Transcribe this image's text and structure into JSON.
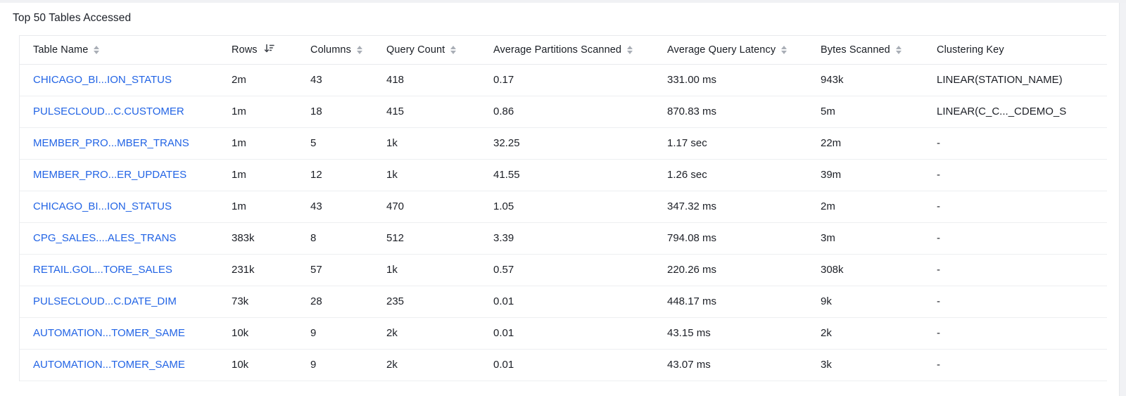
{
  "page": {
    "title": "Top 50 Tables Accessed"
  },
  "colors": {
    "link_blue": "#2264e5",
    "text_dark": "#1c1f26",
    "row_border": "#edeff1",
    "table_border": "#e8eaed",
    "sort_icon_inactive": "#a9aeb6",
    "sort_icon_active": "#3f434a",
    "top_strip": "#f0f1f4",
    "scroll_gutter": "#f1f2f5"
  },
  "icons": {
    "sortable": "sort-toggle-icon",
    "sorted_descending": "sort-descending-icon"
  },
  "table": {
    "columns": [
      {
        "key": "table_name",
        "label": "Table Name",
        "sort": "both"
      },
      {
        "key": "rows",
        "label": "Rows",
        "sort": "desc"
      },
      {
        "key": "columns",
        "label": "Columns",
        "sort": "both"
      },
      {
        "key": "query_count",
        "label": "Query Count",
        "sort": "both"
      },
      {
        "key": "avg_partitions_scanned",
        "label": "Average Partitions Scanned",
        "sort": "both"
      },
      {
        "key": "avg_query_latency",
        "label": "Average Query Latency",
        "sort": "both"
      },
      {
        "key": "bytes_scanned",
        "label": "Bytes Scanned",
        "sort": "both"
      },
      {
        "key": "clustering_key",
        "label": "Clustering Key",
        "sort": "none"
      }
    ],
    "rows": [
      {
        "table_name": "CHICAGO_BI...ION_STATUS",
        "rows": "2m",
        "columns": "43",
        "query_count": "418",
        "avg_partitions_scanned": "0.17",
        "avg_query_latency": "331.00 ms",
        "bytes_scanned": "943k",
        "clustering_key": "LINEAR(STATION_NAME)"
      },
      {
        "table_name": "PULSECLOUD...C.CUSTOMER",
        "rows": "1m",
        "columns": "18",
        "query_count": "415",
        "avg_partitions_scanned": "0.86",
        "avg_query_latency": "870.83 ms",
        "bytes_scanned": "5m",
        "clustering_key": "LINEAR(C_C..._CDEMO_S"
      },
      {
        "table_name": "MEMBER_PRO...MBER_TRANS",
        "rows": "1m",
        "columns": "5",
        "query_count": "1k",
        "avg_partitions_scanned": "32.25",
        "avg_query_latency": "1.17 sec",
        "bytes_scanned": "22m",
        "clustering_key": "-"
      },
      {
        "table_name": "MEMBER_PRO...ER_UPDATES",
        "rows": "1m",
        "columns": "12",
        "query_count": "1k",
        "avg_partitions_scanned": "41.55",
        "avg_query_latency": "1.26 sec",
        "bytes_scanned": "39m",
        "clustering_key": "-"
      },
      {
        "table_name": "CHICAGO_BI...ION_STATUS",
        "rows": "1m",
        "columns": "43",
        "query_count": "470",
        "avg_partitions_scanned": "1.05",
        "avg_query_latency": "347.32 ms",
        "bytes_scanned": "2m",
        "clustering_key": "-"
      },
      {
        "table_name": "CPG_SALES....ALES_TRANS",
        "rows": "383k",
        "columns": "8",
        "query_count": "512",
        "avg_partitions_scanned": "3.39",
        "avg_query_latency": "794.08 ms",
        "bytes_scanned": "3m",
        "clustering_key": "-"
      },
      {
        "table_name": "RETAIL.GOL...TORE_SALES",
        "rows": "231k",
        "columns": "57",
        "query_count": "1k",
        "avg_partitions_scanned": "0.57",
        "avg_query_latency": "220.26 ms",
        "bytes_scanned": "308k",
        "clustering_key": "-"
      },
      {
        "table_name": "PULSECLOUD...C.DATE_DIM",
        "rows": "73k",
        "columns": "28",
        "query_count": "235",
        "avg_partitions_scanned": "0.01",
        "avg_query_latency": "448.17 ms",
        "bytes_scanned": "9k",
        "clustering_key": "-"
      },
      {
        "table_name": "AUTOMATION...TOMER_SAME",
        "rows": "10k",
        "columns": "9",
        "query_count": "2k",
        "avg_partitions_scanned": "0.01",
        "avg_query_latency": "43.15 ms",
        "bytes_scanned": "2k",
        "clustering_key": "-"
      },
      {
        "table_name": "AUTOMATION...TOMER_SAME",
        "rows": "10k",
        "columns": "9",
        "query_count": "2k",
        "avg_partitions_scanned": "0.01",
        "avg_query_latency": "43.07 ms",
        "bytes_scanned": "3k",
        "clustering_key": "-"
      }
    ]
  }
}
